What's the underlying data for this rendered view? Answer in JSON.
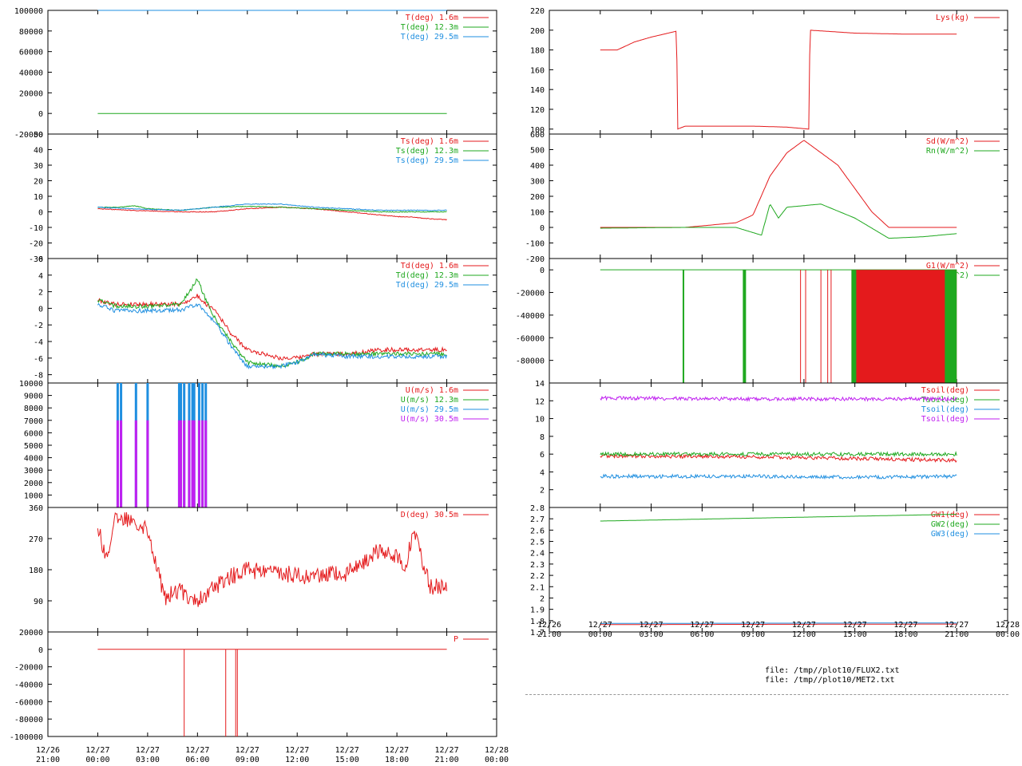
{
  "files": [
    "file: /tmp//plot10/FLUX2.txt",
    "file: /tmp//plot10/MET2.txt"
  ],
  "chart_data": [
    {
      "type": "line",
      "id": "temperature",
      "ylim": [
        -20000,
        100000
      ],
      "yticks": [
        "100000",
        "80000",
        "60000",
        "40000",
        "20000",
        "0",
        "-20000"
      ],
      "series": [
        {
          "name": "T(deg)  1.6m",
          "color": "#e41a1c",
          "t": [
            3,
            24
          ],
          "y": [
            100000,
            100000
          ]
        },
        {
          "name": "T(deg) 12.3m",
          "color": "#1fa81f",
          "t": [
            3,
            24
          ],
          "y": [
            0,
            0
          ]
        },
        {
          "name": "T(deg) 29.5m",
          "color": "#1f8fe0",
          "t": [
            3,
            24
          ],
          "y": [
            100000,
            100000
          ]
        }
      ]
    },
    {
      "type": "line",
      "id": "sonic-temperature",
      "ylim": [
        -30,
        50
      ],
      "yticks": [
        "50",
        "40",
        "30",
        "20",
        "10",
        "0",
        "-10",
        "-20",
        "-30"
      ],
      "series": [
        {
          "name": "Ts(deg)  1.6m",
          "color": "#e41a1c",
          "t": [
            3,
            5,
            8,
            10,
            12,
            14,
            16,
            18,
            20,
            21,
            22,
            23,
            24
          ],
          "y": [
            2,
            1,
            0,
            0,
            2,
            3,
            2,
            0,
            -2,
            -3,
            -3.5,
            -4.5,
            -5
          ]
        },
        {
          "name": "Ts(deg) 12.3m",
          "color": "#1fa81f",
          "t": [
            3,
            4.4,
            5.2,
            6,
            8,
            10,
            12,
            14,
            16,
            18,
            20,
            22,
            24
          ],
          "y": [
            3,
            3,
            4,
            2,
            1,
            3,
            3.5,
            3,
            2,
            1,
            0,
            0,
            0
          ]
        },
        {
          "name": "Ts(deg) 29.5m",
          "color": "#1f8fe0",
          "t": [
            3,
            5,
            8,
            10,
            12,
            14,
            16,
            18,
            20,
            22,
            24
          ],
          "y": [
            3,
            2,
            1,
            3,
            5,
            5,
            3,
            2,
            1,
            1,
            1
          ]
        }
      ]
    },
    {
      "type": "line",
      "id": "dew-temperature",
      "ylim": [
        -9,
        6
      ],
      "yticks": [
        "6",
        "4",
        "2",
        "0",
        "-2",
        "-4",
        "-6",
        "-8"
      ],
      "series": [
        {
          "name": "Td(deg)  1.6m",
          "color": "#e41a1c",
          "t": [
            3,
            4,
            6,
            8,
            9,
            9.5,
            10,
            11,
            12,
            14,
            15,
            16,
            18,
            20,
            22,
            24
          ],
          "y": [
            1,
            0.5,
            0.5,
            0.5,
            1.5,
            0.5,
            0,
            -3,
            -5,
            -6,
            -6,
            -5.5,
            -5.5,
            -5,
            -5,
            -5
          ]
        },
        {
          "name": "Td(deg) 12.3m",
          "color": "#1fa81f",
          "t": [
            3,
            4,
            6,
            8,
            9,
            9.5,
            10,
            11,
            12,
            14,
            15,
            16,
            18,
            20,
            22,
            24
          ],
          "y": [
            1,
            0.3,
            0.2,
            0.5,
            3.5,
            1,
            -1,
            -4,
            -6.5,
            -7,
            -6.5,
            -5.5,
            -5.5,
            -5.5,
            -5.5,
            -5.5
          ]
        },
        {
          "name": "Td(deg) 29.5m",
          "color": "#1f8fe0",
          "t": [
            3,
            4,
            6,
            8,
            9,
            9.5,
            10,
            11,
            12,
            14,
            15,
            16,
            18,
            20,
            22,
            24
          ],
          "y": [
            0.5,
            -0.3,
            -0.3,
            -0.2,
            0.5,
            -0.5,
            -1.5,
            -4.5,
            -7,
            -7,
            -6.5,
            -5.5,
            -5.8,
            -5.8,
            -5.8,
            -5.8
          ]
        }
      ]
    },
    {
      "type": "bar",
      "id": "wind-speed",
      "ylim": [
        0,
        10000
      ],
      "yticks": [
        "10000",
        "9000",
        "8000",
        "7000",
        "6000",
        "5000",
        "4000",
        "3000",
        "2000",
        "1000"
      ],
      "series": [
        {
          "name": "U(m/s)  1.6m",
          "color": "#e41a1c"
        },
        {
          "name": "U(m/s) 12.3m",
          "color": "#1fa81f"
        },
        {
          "name": "U(m/s) 29.5m",
          "color": "#1f8fe0",
          "spikes_t": [
            4.2,
            4.4,
            5.3,
            6,
            7.9,
            8.0,
            8.2,
            8.5,
            8.7,
            8.8,
            9.1,
            9.3,
            9.5
          ]
        },
        {
          "name": "U(m/s) 30.5m",
          "color": "#c020f0",
          "spikes_t": [
            4.2,
            4.4,
            5.3,
            6,
            7.9,
            8.0,
            8.2,
            8.5,
            8.7,
            8.8,
            9.1,
            9.3,
            9.5
          ]
        }
      ]
    },
    {
      "type": "line",
      "id": "wind-direction",
      "ylim": [
        0,
        360
      ],
      "yticks": [
        "360",
        "270",
        "180",
        "90"
      ],
      "series": [
        {
          "name": "D(deg)  30.5m",
          "color": "#e41a1c",
          "t": [
            3,
            3.5,
            4,
            5,
            6,
            7,
            8,
            9,
            10,
            11,
            12,
            14,
            16,
            18,
            19,
            20,
            21,
            21.5,
            22,
            23,
            24
          ],
          "y": [
            310,
            210,
            320,
            330,
            300,
            100,
            120,
            90,
            130,
            160,
            180,
            170,
            160,
            170,
            200,
            240,
            220,
            180,
            300,
            130,
            130
          ]
        }
      ]
    },
    {
      "type": "line",
      "id": "pressure",
      "ylim": [
        -100000,
        20000
      ],
      "yticks": [
        "20000",
        "0",
        "-20000",
        "-40000",
        "-60000",
        "-80000",
        "-100000"
      ],
      "series": [
        {
          "name": "P",
          "color": "#e41a1c",
          "t": [
            3,
            24
          ],
          "y": [
            0,
            0
          ],
          "drops_t": [
            8.2,
            10.7,
            11.3,
            11.4
          ]
        }
      ]
    },
    {
      "type": "line",
      "id": "lysimeter",
      "ylim": [
        95,
        220
      ],
      "yticks": [
        "220",
        "200",
        "180",
        "160",
        "140",
        "120",
        "100"
      ],
      "series": [
        {
          "name": "Lys(kg)",
          "color": "#e41a1c",
          "t": [
            3,
            4,
            5,
            6,
            7.5,
            7.55,
            8,
            10,
            12,
            14,
            15.3,
            15.35,
            18,
            21,
            24
          ],
          "y": [
            180,
            180,
            188,
            193,
            199,
            100,
            103,
            103,
            103,
            102,
            100,
            200,
            197,
            196,
            196
          ]
        }
      ]
    },
    {
      "type": "line",
      "id": "radiation",
      "ylim": [
        -200,
        600
      ],
      "yticks": [
        "600",
        "500",
        "400",
        "300",
        "200",
        "100",
        "0",
        "-100",
        "-200"
      ],
      "series": [
        {
          "name": "Sd(W/m^2)",
          "color": "#e41a1c",
          "t": [
            3,
            8,
            11,
            12,
            13,
            14,
            15,
            17,
            19,
            20,
            24
          ],
          "y": [
            0,
            0,
            30,
            80,
            330,
            480,
            560,
            400,
            100,
            0,
            0
          ]
        },
        {
          "name": "Rn(W/m^2)",
          "color": "#1fa81f",
          "t": [
            3,
            8,
            11,
            12.5,
            13,
            13.5,
            14,
            16,
            18,
            20,
            22,
            24
          ],
          "y": [
            -5,
            0,
            0,
            -50,
            150,
            60,
            130,
            150,
            60,
            -70,
            -60,
            -40
          ]
        }
      ]
    },
    {
      "type": "bar",
      "id": "ground-heat",
      "ylim": [
        -100000,
        10000
      ],
      "yticks": [
        "0",
        "-20000",
        "-40000",
        "-60000",
        "-80000"
      ],
      "series": [
        {
          "name": "G1(W/m^2)",
          "color": "#e41a1c"
        },
        {
          "name": "G2(W/m^2)",
          "color": "#1fa81f"
        }
      ]
    },
    {
      "type": "line",
      "id": "soil-temperature",
      "ylim": [
        0,
        14
      ],
      "yticks": [
        "14",
        "12",
        "10",
        "8",
        "6",
        "4",
        "2"
      ],
      "series": [
        {
          "name": "Tsoil(deg)",
          "color": "#e41a1c",
          "t": [
            3,
            12,
            18,
            24
          ],
          "y": [
            5.8,
            5.7,
            5.5,
            5.3
          ]
        },
        {
          "name": "Tsoil(deg)",
          "color": "#1fa81f",
          "t": [
            3,
            12,
            18,
            24
          ],
          "y": [
            6.0,
            6.0,
            6.0,
            6.0
          ]
        },
        {
          "name": "Tsoil(deg)",
          "color": "#1f8fe0",
          "t": [
            3,
            12,
            18,
            24
          ],
          "y": [
            3.5,
            3.5,
            3.4,
            3.5
          ]
        },
        {
          "name": "Tsoil(deg)",
          "color": "#c020f0",
          "t": [
            3,
            12,
            18,
            24
          ],
          "y": [
            12.3,
            12.2,
            12.2,
            12.2
          ]
        }
      ]
    },
    {
      "type": "line",
      "id": "groundwater",
      "ylim": [
        1.7,
        2.8
      ],
      "yticks": [
        "2.8",
        "2.7",
        "2.6",
        "2.5",
        "2.4",
        "2.3",
        "2.2",
        "2.1",
        "2",
        "1.9",
        "1.8",
        "1.7"
      ],
      "series": [
        {
          "name": "GW1(deg)",
          "color": "#e41a1c",
          "t": [
            3,
            24
          ],
          "y": [
            1.765,
            1.77
          ]
        },
        {
          "name": "GW2(deg)",
          "color": "#1fa81f",
          "t": [
            3,
            24
          ],
          "y": [
            2.68,
            2.74
          ]
        },
        {
          "name": "GW3(deg)",
          "color": "#1f8fe0",
          "t": [
            3,
            24
          ],
          "y": [
            1.775,
            1.78
          ]
        }
      ]
    }
  ],
  "x_axis": {
    "ticks": [
      {
        "date": "12/26",
        "time": "21:00"
      },
      {
        "date": "12/27",
        "time": "00:00"
      },
      {
        "date": "12/27",
        "time": "03:00"
      },
      {
        "date": "12/27",
        "time": "06:00"
      },
      {
        "date": "12/27",
        "time": "09:00"
      },
      {
        "date": "12/27",
        "time": "12:00"
      },
      {
        "date": "12/27",
        "time": "15:00"
      },
      {
        "date": "12/27",
        "time": "18:00"
      },
      {
        "date": "12/27",
        "time": "21:00"
      },
      {
        "date": "12/28",
        "time": "00:00"
      }
    ]
  }
}
